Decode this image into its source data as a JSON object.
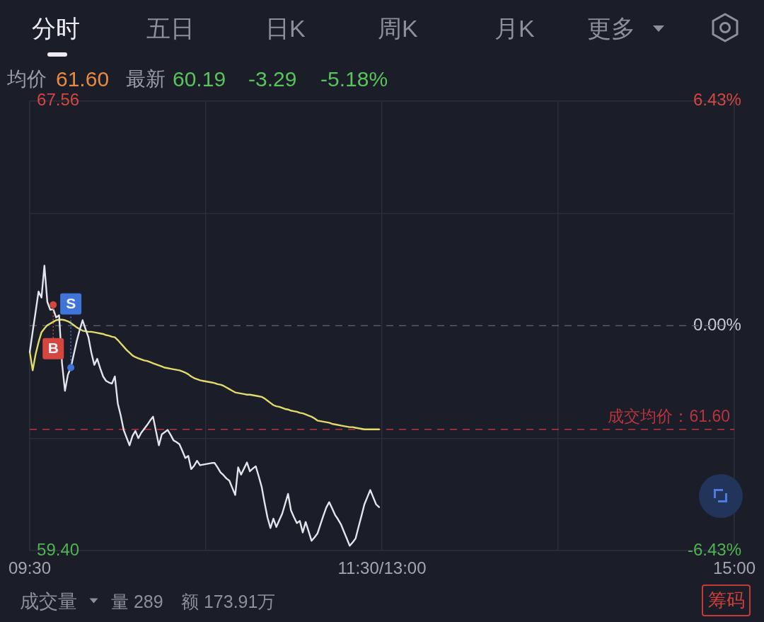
{
  "chart_data": {
    "type": "line",
    "annotations": [
      "分时",
      "五日",
      "日K",
      "周K",
      "月K",
      "更多",
      "均价",
      "61.60",
      "最新",
      "60.19",
      "-3.29",
      "-5.18%",
      "成交量",
      "量 289",
      "额 173.91万",
      "筹码"
    ],
    "categories": [
      "09:30",
      null,
      null,
      null,
      null,
      null,
      null,
      null,
      null,
      null,
      null,
      null,
      null,
      null,
      null,
      null,
      null,
      null,
      null,
      null,
      null,
      null,
      null,
      null,
      null,
      null,
      null,
      null,
      null,
      null,
      null,
      null,
      null,
      null,
      null,
      null,
      null,
      null,
      null,
      null,
      null,
      null,
      null,
      null,
      null,
      null,
      null,
      null,
      null,
      null,
      null,
      null,
      null,
      null,
      null,
      null,
      null,
      null,
      null,
      null,
      null,
      null,
      null,
      null,
      null,
      null,
      null,
      null,
      null,
      null,
      null,
      null,
      null,
      null,
      null,
      null,
      null,
      null,
      null,
      null,
      null,
      null,
      null,
      null,
      null,
      null,
      null,
      null,
      null,
      null,
      null,
      null,
      null,
      null,
      null,
      null,
      null,
      null,
      null,
      null,
      null,
      null,
      null,
      null,
      null,
      null,
      null,
      null,
      null,
      null,
      null,
      null,
      null,
      null,
      null,
      null,
      null,
      null,
      null,
      null,
      "11:30/13:00",
      null,
      null,
      null,
      null,
      null,
      null,
      null,
      null,
      null,
      null,
      null,
      null,
      null,
      null,
      null,
      null,
      null,
      null,
      null,
      null,
      null,
      null,
      null,
      null,
      null,
      null,
      null,
      null,
      null,
      null,
      null,
      null,
      null,
      null,
      null,
      null,
      null,
      null,
      null,
      null,
      null,
      null,
      null,
      null,
      null,
      null,
      null,
      null,
      null,
      null,
      null,
      null,
      null,
      null,
      null,
      null,
      null,
      null,
      null,
      null,
      null,
      null,
      null,
      null,
      null,
      null,
      null,
      null,
      null,
      null,
      null,
      null,
      null,
      null,
      null,
      null,
      null,
      null,
      null,
      null,
      null,
      null,
      null,
      null,
      null,
      null,
      null,
      null,
      null,
      null,
      null,
      null,
      null,
      null,
      null,
      null,
      null,
      null,
      null,
      null,
      null,
      null,
      null,
      null,
      null,
      null,
      null,
      null,
      null,
      null,
      null,
      null,
      null,
      null,
      null,
      null,
      null,
      null,
      null,
      "15:00"
    ],
    "ylim": [
      59.4,
      67.56
    ],
    "yticks": [
      {
        "value": 59.4,
        "label": "59.40"
      },
      {
        "value": 61.44,
        "label": null
      },
      {
        "value": 65.52,
        "label": null
      },
      {
        "value": 67.56,
        "label": "67.56"
      }
    ],
    "y2lim": [
      -6.43,
      6.43
    ],
    "y2ticks": [
      {
        "value": -6.43,
        "label": "-6.43%"
      },
      {
        "value": 0,
        "label": "0.00%"
      },
      {
        "value": 6.43,
        "label": "6.43%"
      }
    ],
    "grid": true,
    "marker": "none",
    "ref_lines": [
      {
        "axis": "y2",
        "value": 0,
        "color": "#565a68",
        "line_style": "dashed"
      },
      {
        "axis": "y",
        "value": 61.6,
        "label": "成交均价：61.60",
        "color": "#b9353b",
        "line_style": "dashed"
      }
    ],
    "series": [
      {
        "color": "#e4e4ec",
        "values": [
          63.0,
          63.37,
          63.73,
          64.1,
          63.99,
          64.57,
          63.91,
          63.77,
          63.78,
          63.63,
          63.67,
          62.8,
          62.3,
          62.59,
          62.72,
          62.96,
          63.2,
          63.4,
          63.58,
          63.42,
          63.27,
          62.99,
          62.77,
          62.88,
          62.71,
          62.56,
          62.48,
          62.45,
          62.43,
          62.56,
          62.07,
          61.85,
          61.59,
          61.45,
          61.31,
          61.48,
          61.57,
          61.44,
          61.54,
          61.61,
          61.68,
          61.76,
          61.83,
          61.57,
          61.31,
          61.51,
          61.55,
          61.59,
          61.5,
          61.4,
          61.37,
          61.33,
          61.21,
          61.08,
          61.12,
          60.88,
          60.94,
          61.03,
          60.95,
          60.96,
          60.97,
          60.98,
          60.99,
          60.99,
          60.91,
          60.82,
          60.77,
          60.71,
          60.67,
          60.54,
          60.41,
          60.91,
          60.78,
          60.89,
          61.0,
          60.84,
          60.89,
          60.93,
          60.75,
          60.56,
          60.27,
          60.0,
          59.81,
          59.98,
          59.83,
          59.95,
          60.07,
          60.25,
          60.43,
          60.13,
          60.01,
          59.9,
          59.94,
          59.73,
          59.92,
          59.75,
          59.58,
          59.64,
          59.71,
          59.87,
          60.03,
          60.18,
          60.28,
          60.17,
          60.05,
          59.97,
          59.88,
          59.75,
          59.62,
          59.49,
          59.55,
          59.62,
          59.83,
          60.03,
          60.24,
          60.37,
          60.5,
          60.37,
          60.24,
          60.19,
          null,
          null,
          null,
          null,
          null,
          null,
          null,
          null,
          null,
          null,
          null,
          null,
          null,
          null,
          null,
          null,
          null,
          null,
          null,
          null,
          null,
          null,
          null,
          null,
          null,
          null,
          null,
          null,
          null,
          null,
          null,
          null,
          null,
          null,
          null,
          null,
          null,
          null,
          null,
          null,
          null,
          null,
          null,
          null,
          null,
          null,
          null,
          null,
          null,
          null,
          null,
          null,
          null,
          null,
          null,
          null,
          null,
          null,
          null,
          null,
          null,
          null,
          null,
          null,
          null,
          null,
          null,
          null,
          null,
          null,
          null,
          null,
          null,
          null,
          null,
          null,
          null,
          null,
          null,
          null,
          null,
          null,
          null,
          null,
          null,
          null,
          null,
          null,
          null,
          null,
          null,
          null,
          null,
          null,
          null,
          null,
          null,
          null,
          null,
          null,
          null,
          null,
          null,
          null,
          null,
          null,
          null,
          null,
          null,
          null,
          null,
          null,
          null,
          null,
          null,
          null,
          null,
          null,
          null,
          null,
          null
        ]
      },
      {
        "color": "#e2da6a",
        "values": [
          63.01,
          62.67,
          62.96,
          63.18,
          63.36,
          63.43,
          63.49,
          63.52,
          63.55,
          63.58,
          63.59,
          63.59,
          63.58,
          63.56,
          63.53,
          63.49,
          63.45,
          63.42,
          63.39,
          63.38,
          63.37,
          63.37,
          63.36,
          63.35,
          63.34,
          63.33,
          63.31,
          63.3,
          63.28,
          63.27,
          63.22,
          63.16,
          63.1,
          63.04,
          62.99,
          62.94,
          62.91,
          62.89,
          62.87,
          62.85,
          62.84,
          62.82,
          62.8,
          62.78,
          62.76,
          62.74,
          62.72,
          62.71,
          62.7,
          62.69,
          62.68,
          62.67,
          62.65,
          62.63,
          62.6,
          62.56,
          62.53,
          62.51,
          62.49,
          62.48,
          62.47,
          62.46,
          62.45,
          62.44,
          62.42,
          62.41,
          62.39,
          62.36,
          62.33,
          62.3,
          62.27,
          62.26,
          62.25,
          62.24,
          62.23,
          62.23,
          62.22,
          62.21,
          62.2,
          62.19,
          62.16,
          62.12,
          62.08,
          62.04,
          62.02,
          62.01,
          61.99,
          61.97,
          61.96,
          61.94,
          61.93,
          61.92,
          61.9,
          61.89,
          61.87,
          61.85,
          61.83,
          61.8,
          61.76,
          61.75,
          61.74,
          61.73,
          61.72,
          61.7,
          61.69,
          61.68,
          61.67,
          61.66,
          61.65,
          61.64,
          61.64,
          61.63,
          61.62,
          61.61,
          61.6,
          61.6,
          61.6,
          61.6,
          61.6,
          61.6,
          null,
          null,
          null,
          null,
          null,
          null,
          null,
          null,
          null,
          null,
          null,
          null,
          null,
          null,
          null,
          null,
          null,
          null,
          null,
          null,
          null,
          null,
          null,
          null,
          null,
          null,
          null,
          null,
          null,
          null,
          null,
          null,
          null,
          null,
          null,
          null,
          null,
          null,
          null,
          null,
          null,
          null,
          null,
          null,
          null,
          null,
          null,
          null,
          null,
          null,
          null,
          null,
          null,
          null,
          null,
          null,
          null,
          null,
          null,
          null,
          null,
          null,
          null,
          null,
          null,
          null,
          null,
          null,
          null,
          null,
          null,
          null,
          null,
          null,
          null,
          null,
          null,
          null,
          null,
          null,
          null,
          null,
          null,
          null,
          null,
          null,
          null,
          null,
          null,
          null,
          null,
          null,
          null,
          null,
          null,
          null,
          null,
          null,
          null,
          null,
          null,
          null,
          null,
          null,
          null,
          null,
          null,
          null,
          null,
          null,
          null,
          null,
          null,
          null,
          null,
          null,
          null,
          null,
          null,
          null,
          null
        ]
      },
      {
        "type": "scatter",
        "name": "B",
        "color": "#d4463f",
        "marker": "circle",
        "values": [
          null,
          null,
          null,
          null,
          null,
          null,
          null,
          null,
          63.86,
          null,
          null,
          null,
          null,
          null,
          null,
          null,
          null,
          null,
          null,
          null,
          null,
          null,
          null,
          null,
          null,
          null,
          null,
          null,
          null,
          null,
          null,
          null,
          null,
          null,
          null,
          null,
          null,
          null,
          null,
          null,
          null,
          null,
          null,
          null,
          null,
          null,
          null,
          null,
          null,
          null,
          null,
          null,
          null,
          null,
          null,
          null,
          null,
          null,
          null,
          null,
          null,
          null,
          null,
          null,
          null,
          null,
          null,
          null,
          null,
          null,
          null,
          null,
          null,
          null,
          null,
          null,
          null,
          null,
          null,
          null,
          null,
          null,
          null,
          null,
          null,
          null,
          null,
          null,
          null,
          null,
          null,
          null,
          null,
          null,
          null,
          null,
          null,
          null,
          null,
          null,
          null,
          null,
          null,
          null,
          null,
          null,
          null,
          null,
          null,
          null,
          null,
          null,
          null,
          null,
          null,
          null,
          null,
          null,
          null,
          null,
          null,
          null,
          null,
          null,
          null,
          null,
          null,
          null,
          null,
          null,
          null,
          null,
          null,
          null,
          null,
          null,
          null,
          null,
          null,
          null,
          null,
          null,
          null,
          null,
          null,
          null,
          null,
          null,
          null,
          null,
          null,
          null,
          null,
          null,
          null,
          null,
          null,
          null,
          null,
          null,
          null,
          null,
          null,
          null,
          null,
          null,
          null,
          null,
          null,
          null,
          null,
          null,
          null,
          null,
          null,
          null,
          null,
          null,
          null,
          null,
          null,
          null,
          null,
          null,
          null,
          null,
          null,
          null,
          null,
          null,
          null,
          null,
          null,
          null,
          null,
          null,
          null,
          null,
          null,
          null,
          null,
          null,
          null,
          null,
          null,
          null,
          null,
          null,
          null,
          null,
          null,
          null,
          null,
          null,
          null,
          null,
          null,
          null,
          null,
          null,
          null,
          null,
          null,
          null,
          null,
          null,
          null,
          null,
          null,
          null,
          null,
          null,
          null,
          null,
          null,
          null,
          null,
          null,
          null,
          null,
          null
        ]
      },
      {
        "type": "scatter",
        "name": "S",
        "color": "#3f74d9",
        "marker": "circle",
        "values": [
          null,
          null,
          null,
          null,
          null,
          null,
          null,
          null,
          null,
          null,
          null,
          null,
          null,
          null,
          62.72,
          null,
          null,
          null,
          null,
          null,
          null,
          null,
          null,
          null,
          null,
          null,
          null,
          null,
          null,
          null,
          null,
          null,
          null,
          null,
          null,
          null,
          null,
          null,
          null,
          null,
          null,
          null,
          null,
          null,
          null,
          null,
          null,
          null,
          null,
          null,
          null,
          null,
          null,
          null,
          null,
          null,
          null,
          null,
          null,
          null,
          null,
          null,
          null,
          null,
          null,
          null,
          null,
          null,
          null,
          null,
          null,
          null,
          null,
          null,
          null,
          null,
          null,
          null,
          null,
          null,
          null,
          null,
          null,
          null,
          null,
          null,
          null,
          null,
          null,
          null,
          null,
          null,
          null,
          null,
          null,
          null,
          null,
          null,
          null,
          null,
          null,
          null,
          null,
          null,
          null,
          null,
          null,
          null,
          null,
          null,
          null,
          null,
          null,
          null,
          null,
          null,
          null,
          null,
          null,
          null,
          null,
          null,
          null,
          null,
          null,
          null,
          null,
          null,
          null,
          null,
          null,
          null,
          null,
          null,
          null,
          null,
          null,
          null,
          null,
          null,
          null,
          null,
          null,
          null,
          null,
          null,
          null,
          null,
          null,
          null,
          null,
          null,
          null,
          null,
          null,
          null,
          null,
          null,
          null,
          null,
          null,
          null,
          null,
          null,
          null,
          null,
          null,
          null,
          null,
          null,
          null,
          null,
          null,
          null,
          null,
          null,
          null,
          null,
          null,
          null,
          null,
          null,
          null,
          null,
          null,
          null,
          null,
          null,
          null,
          null,
          null,
          null,
          null,
          null,
          null,
          null,
          null,
          null,
          null,
          null,
          null,
          null,
          null,
          null,
          null,
          null,
          null,
          null,
          null,
          null,
          null,
          null,
          null,
          null,
          null,
          null,
          null,
          null,
          null,
          null,
          null,
          null,
          null,
          null,
          null,
          null,
          null,
          null,
          null,
          null,
          null,
          null,
          null,
          null,
          null,
          null,
          null,
          null,
          null,
          null,
          null
        ]
      }
    ]
  }
}
